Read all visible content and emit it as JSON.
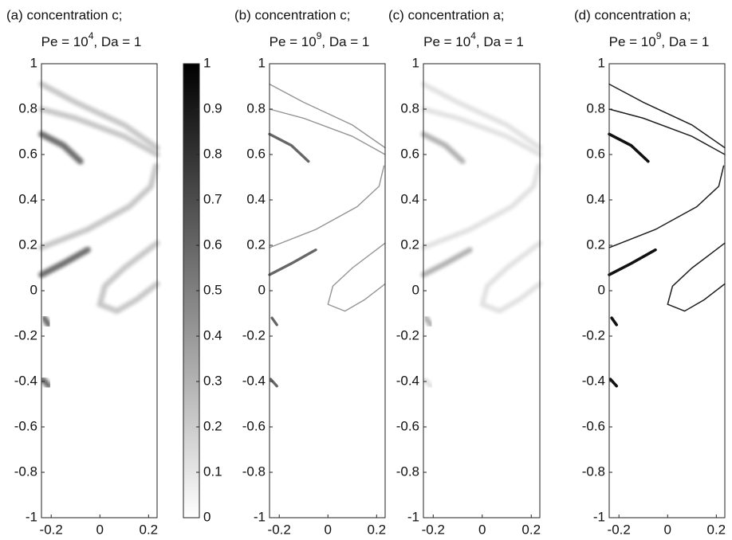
{
  "chart_data": [
    {
      "type": "heatmap",
      "title": "(a) concentration c;",
      "subtitle": {
        "text": "Pe = 10",
        "exponent": "4",
        "rest": ", Da = 1"
      },
      "xlim": [
        -0.24,
        0.235
      ],
      "ylim": [
        -1,
        1
      ],
      "xticks": [
        -0.2,
        0,
        0.2
      ],
      "yticks": [
        1,
        0.8,
        0.6,
        0.4,
        0.2,
        0,
        -0.2,
        -0.4,
        -0.6,
        -0.8,
        -1
      ]
    },
    {
      "type": "colorbar",
      "colormap": [
        "#ffffff",
        "#000000"
      ],
      "ylim": [
        0,
        1
      ],
      "yticks": [
        0,
        0.1,
        0.2,
        0.3,
        0.4,
        0.5,
        0.6,
        0.7,
        0.8,
        0.9,
        1
      ]
    },
    {
      "type": "heatmap",
      "title": "(b) concentration c;",
      "subtitle": {
        "text": "Pe = 10",
        "exponent": "9",
        "rest": ", Da = 1"
      },
      "xlim": [
        -0.24,
        0.235
      ],
      "ylim": [
        -1,
        1
      ],
      "xticks": [
        -0.2,
        0,
        0.2
      ],
      "yticks": [
        1,
        0.8,
        0.6,
        0.4,
        0.2,
        0,
        -0.2,
        -0.4,
        -0.6,
        -0.8,
        -1
      ]
    },
    {
      "type": "heatmap",
      "title": "(c) concentration a;",
      "subtitle": {
        "text": "Pe = 10",
        "exponent": "4",
        "rest": ", Da = 1"
      },
      "xlim": [
        -0.24,
        0.235
      ],
      "ylim": [
        -1,
        1
      ],
      "xticks": [
        -0.2,
        0,
        0.2
      ],
      "yticks": [
        1,
        0.8,
        0.6,
        0.4,
        0.2,
        0,
        -0.2,
        -0.4,
        -0.6,
        -0.8,
        -1
      ]
    },
    {
      "type": "heatmap",
      "title": "(d) concentration a;",
      "subtitle": {
        "text": "Pe = 10",
        "exponent": "9",
        "rest": ", Da = 1"
      },
      "xlim": [
        -0.24,
        0.235
      ],
      "ylim": [
        -1,
        1
      ],
      "xticks": [
        -0.2,
        0,
        0.2
      ],
      "yticks": [
        1,
        0.8,
        0.6,
        0.4,
        0.2,
        0,
        -0.2,
        -0.4,
        -0.6,
        -0.8,
        -1
      ]
    }
  ]
}
